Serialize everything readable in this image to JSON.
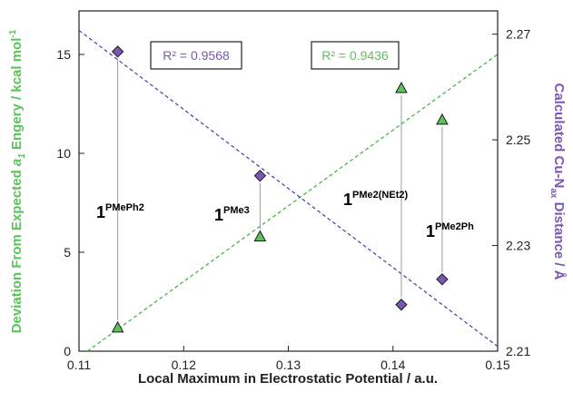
{
  "chart_data": {
    "type": "scatter",
    "xlabel": "Local Maximum in Electrostatic Potential / a.u.",
    "ylabel_left": {
      "prefix": "Deviation From Expected ",
      "italic": "a",
      "subscript": "1",
      "suffix": " Engery / kcal mol",
      "superscript": "-1"
    },
    "ylabel_right": {
      "prefix": "Calculated Cu-N",
      "subscript": "ax",
      "suffix": " Distance / Å"
    },
    "xlim": [
      0.11,
      0.15
    ],
    "x_ticks": [
      "0.11",
      "0.12",
      "0.13",
      "0.14",
      "0.15"
    ],
    "x_tick_values": [
      0.11,
      0.12,
      0.13,
      0.14,
      0.15
    ],
    "ylim_left": [
      0,
      17.2
    ],
    "y_left_ticks": [
      "0",
      "5",
      "10",
      "15"
    ],
    "y_left_tick_values": [
      0,
      5,
      10,
      15
    ],
    "ylim_right": [
      2.21,
      2.2744
    ],
    "y_right_ticks": [
      "2.21",
      "2.23",
      "2.25",
      "2.27"
    ],
    "y_right_tick_values": [
      2.21,
      2.23,
      2.25,
      2.27
    ],
    "grid": false,
    "series": [
      {
        "axis": "left",
        "marker": "triangle",
        "color": "#5cc35c",
        "x": [
          0.1137,
          0.1273,
          0.1408,
          0.1447
        ],
        "y": [
          1.2,
          5.8,
          13.3,
          11.7
        ]
      },
      {
        "axis": "right",
        "marker": "diamond",
        "color": "#7b56b5",
        "x": [
          0.1137,
          0.1273,
          0.1408,
          0.1447
        ],
        "y": [
          2.2667,
          2.2432,
          2.2188,
          2.2236
        ]
      }
    ],
    "fits": [
      {
        "axis": "left",
        "color": "#39b039",
        "x": [
          0.1108,
          0.15
        ],
        "y": [
          0,
          15.0
        ],
        "r2_label": "R² = 0.9436"
      },
      {
        "axis": "right",
        "color": "#3f3fa8",
        "x": [
          0.11,
          0.15
        ],
        "y": [
          2.2707,
          2.2109
        ],
        "r2_label": "R² = 0.9568"
      }
    ],
    "annotations": [
      {
        "base": "1",
        "sup": "PMePh2"
      },
      {
        "base": "1",
        "sup": "PMe3"
      },
      {
        "base": "1",
        "sup": "PMe2(NEt2)"
      },
      {
        "base": "1",
        "sup": "PMe2Ph"
      }
    ]
  },
  "colors": {
    "left_axis_label": "#5cc35c",
    "right_axis_label": "#7b56b5",
    "r2_left_text": "#7b56b5",
    "r2_right_text": "#5cc35c"
  }
}
